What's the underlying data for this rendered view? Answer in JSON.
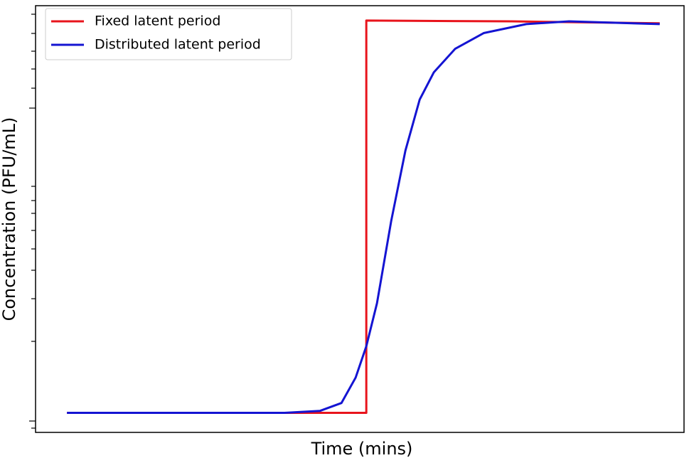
{
  "chart_data": {
    "type": "line",
    "xlabel": "Time (mins)",
    "ylabel": "Concentration (PFU/mL)",
    "xlim": [
      -5.3,
      104.1
    ],
    "ylim": [
      -0.05,
      1.04
    ],
    "legend": "upper left",
    "series": [
      {
        "name": "Fixed latent period",
        "color": "#e8141c",
        "x": [
          0,
          50.5,
          50.5,
          75,
          100
        ],
        "values": [
          0,
          0,
          1.002,
          1.0,
          0.995
        ]
      },
      {
        "name": "Distributed latent period",
        "color": "#1414d2",
        "x": [
          0,
          36.7,
          42.7,
          46.3,
          48.7,
          50.5,
          52.3,
          54.7,
          57.1,
          59.5,
          61.9,
          65.5,
          70.3,
          77.5,
          84.7,
          100
        ],
        "values": [
          0,
          0,
          0.005,
          0.025,
          0.09,
          0.17,
          0.28,
          0.49,
          0.67,
          0.8,
          0.87,
          0.93,
          0.97,
          0.993,
          1.0,
          0.993
        ]
      }
    ]
  }
}
